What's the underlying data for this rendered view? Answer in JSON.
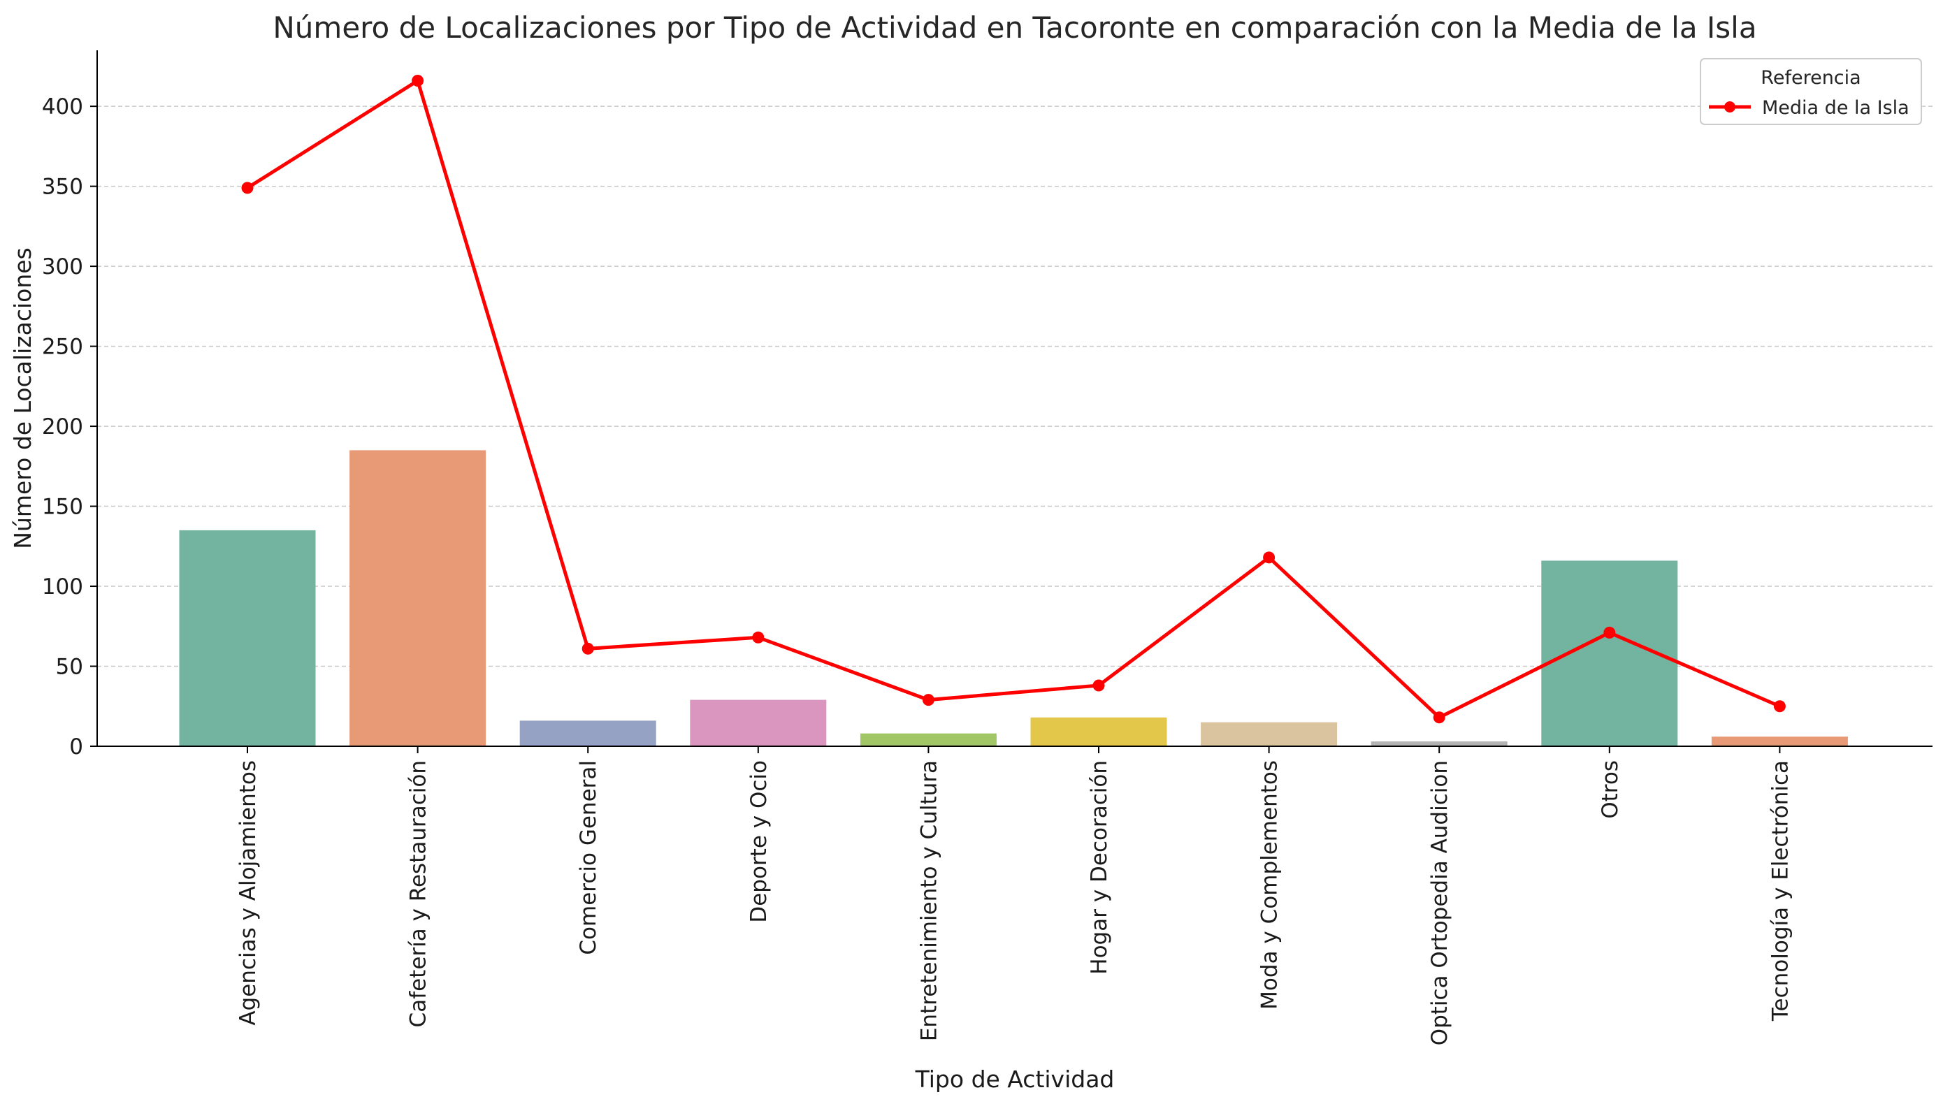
{
  "chart_data": {
    "type": "bar",
    "title": "Número de Localizaciones por Tipo de Actividad en Tacoronte en comparación con la Media de la Isla",
    "xlabel": "Tipo de Actividad",
    "ylabel": "Número de Localizaciones",
    "ylim": [
      0,
      435
    ],
    "yticks": [
      0,
      50,
      100,
      150,
      200,
      250,
      300,
      350,
      400
    ],
    "grid": "horizontal-dashed",
    "categories": [
      "Agencias y Alojamientos",
      "Cafetería y Restauración",
      "Comercio General",
      "Deporte y Ocio",
      "Entretenimiento y Cultura",
      "Hogar y Decoración",
      "Moda y Complementos",
      "Optica Ortopedia Audicion",
      "Otros",
      "Tecnología y Electrónica"
    ],
    "values": [
      135,
      185,
      16,
      29,
      8,
      18,
      15,
      3,
      116,
      6
    ],
    "bar_colors": [
      "#72b4a0",
      "#e89a76",
      "#95a2c4",
      "#db96c0",
      "#a2c566",
      "#e2c74b",
      "#dac39f",
      "#b3b3b3",
      "#72b4a0",
      "#e89a76"
    ],
    "series": [
      {
        "name": "Media de la Isla",
        "type": "line",
        "color": "#ff0000",
        "values": [
          349,
          416,
          61,
          68,
          29,
          38,
          118,
          18,
          71,
          25
        ]
      }
    ],
    "legend": {
      "title": "Referencia",
      "position": "top-right"
    }
  }
}
